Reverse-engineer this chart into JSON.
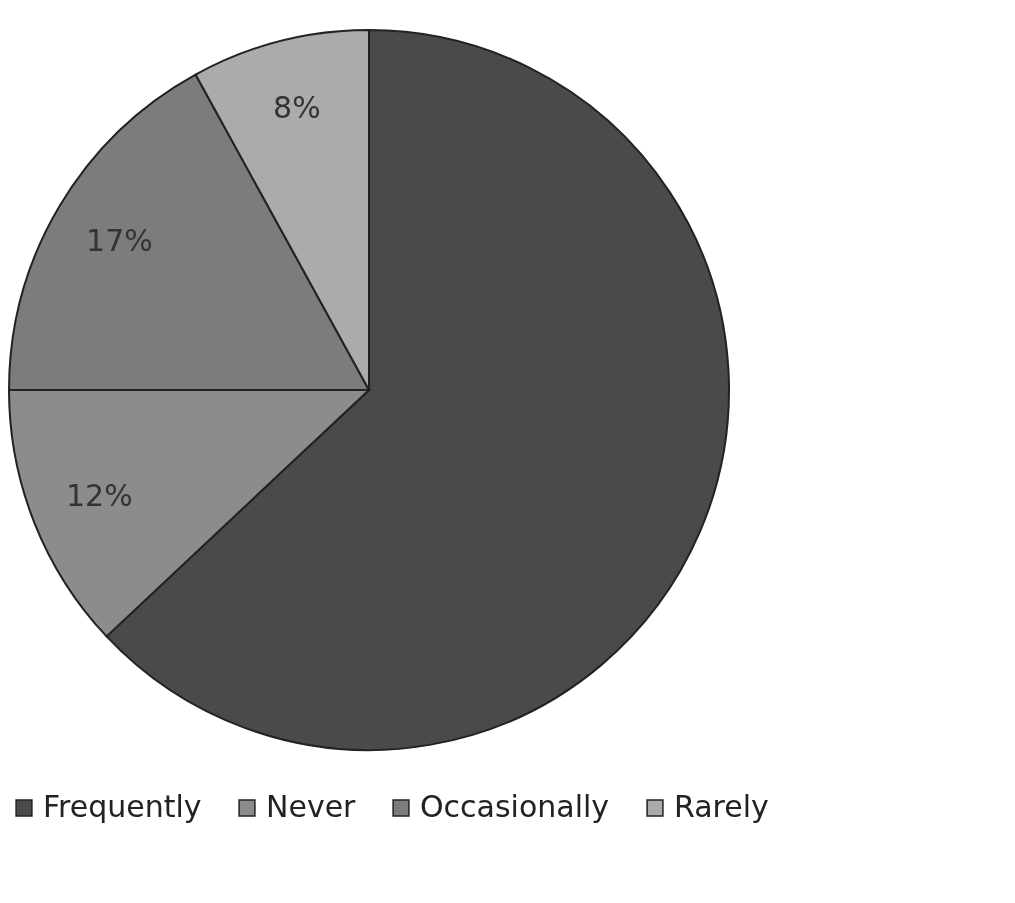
{
  "chart_data": {
    "type": "pie",
    "categories": [
      "Frequently",
      "Never",
      "Occasionally",
      "Rarely"
    ],
    "values": [
      63,
      12,
      17,
      8
    ],
    "colors": [
      "#4a4a4a",
      "#8c8c8c",
      "#7c7c7c",
      "#ababab"
    ],
    "value_labels": [
      null,
      "12%",
      "17%",
      "8%"
    ],
    "legend": "bottom"
  }
}
